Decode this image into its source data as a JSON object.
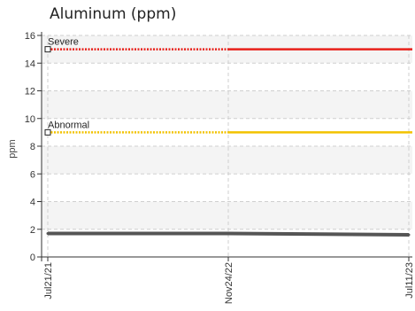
{
  "chart_data": {
    "type": "line",
    "title": "Aluminum (ppm)",
    "ylabel": "ppm",
    "xlabel": "",
    "ylim": [
      0,
      16
    ],
    "yticks": [
      0,
      2,
      4,
      6,
      8,
      10,
      12,
      14,
      16
    ],
    "categories": [
      "Jul21/21",
      "Nov24/22",
      "Jul11/23"
    ],
    "grid": true,
    "series": [
      {
        "name": "",
        "values": [
          1.7,
          1.7,
          1.6
        ],
        "color": "#555555"
      }
    ],
    "thresholds": [
      {
        "label": "Severe",
        "value": 15,
        "color": "#e8201a"
      },
      {
        "label": "Abnormal",
        "value": 9,
        "color": "#f2c200"
      }
    ]
  }
}
